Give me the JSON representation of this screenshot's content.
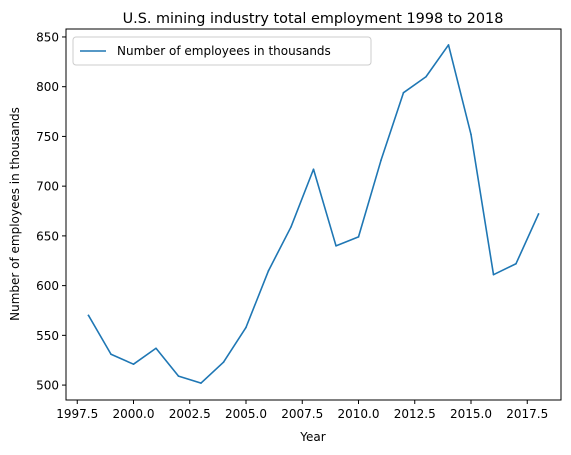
{
  "chart_data": {
    "type": "line",
    "title": "U.S. mining industry total employment 1998 to 2018",
    "xlabel": "Year",
    "ylabel": "Number of employees in thousands",
    "xlim": [
      1997,
      2019
    ],
    "ylim": [
      485,
      858
    ],
    "x_ticks": [
      1997.5,
      2000.0,
      2002.5,
      2005.0,
      2007.5,
      2010.0,
      2012.5,
      2015.0,
      2017.5
    ],
    "x_tick_labels": [
      "1997.5",
      "2000.0",
      "2002.5",
      "2005.0",
      "2007.5",
      "2010.0",
      "2012.5",
      "2015.0",
      "2017.5"
    ],
    "y_ticks": [
      500,
      550,
      600,
      650,
      700,
      750,
      800,
      850
    ],
    "y_tick_labels": [
      "500",
      "550",
      "600",
      "650",
      "700",
      "750",
      "800",
      "850"
    ],
    "grid": false,
    "legend_position": "upper left",
    "series": [
      {
        "name": "Number of employees in thousands",
        "color": "#1f77b4",
        "x": [
          1998,
          1999,
          2000,
          2001,
          2002,
          2003,
          2004,
          2005,
          2006,
          2007,
          2008,
          2009,
          2010,
          2011,
          2012,
          2013,
          2014,
          2015,
          2016,
          2017,
          2018
        ],
        "y": [
          570,
          531,
          521,
          537,
          509,
          502,
          523,
          558,
          615,
          659,
          717,
          640,
          649,
          726,
          794,
          810,
          842,
          752,
          611,
          622,
          672
        ]
      }
    ]
  }
}
